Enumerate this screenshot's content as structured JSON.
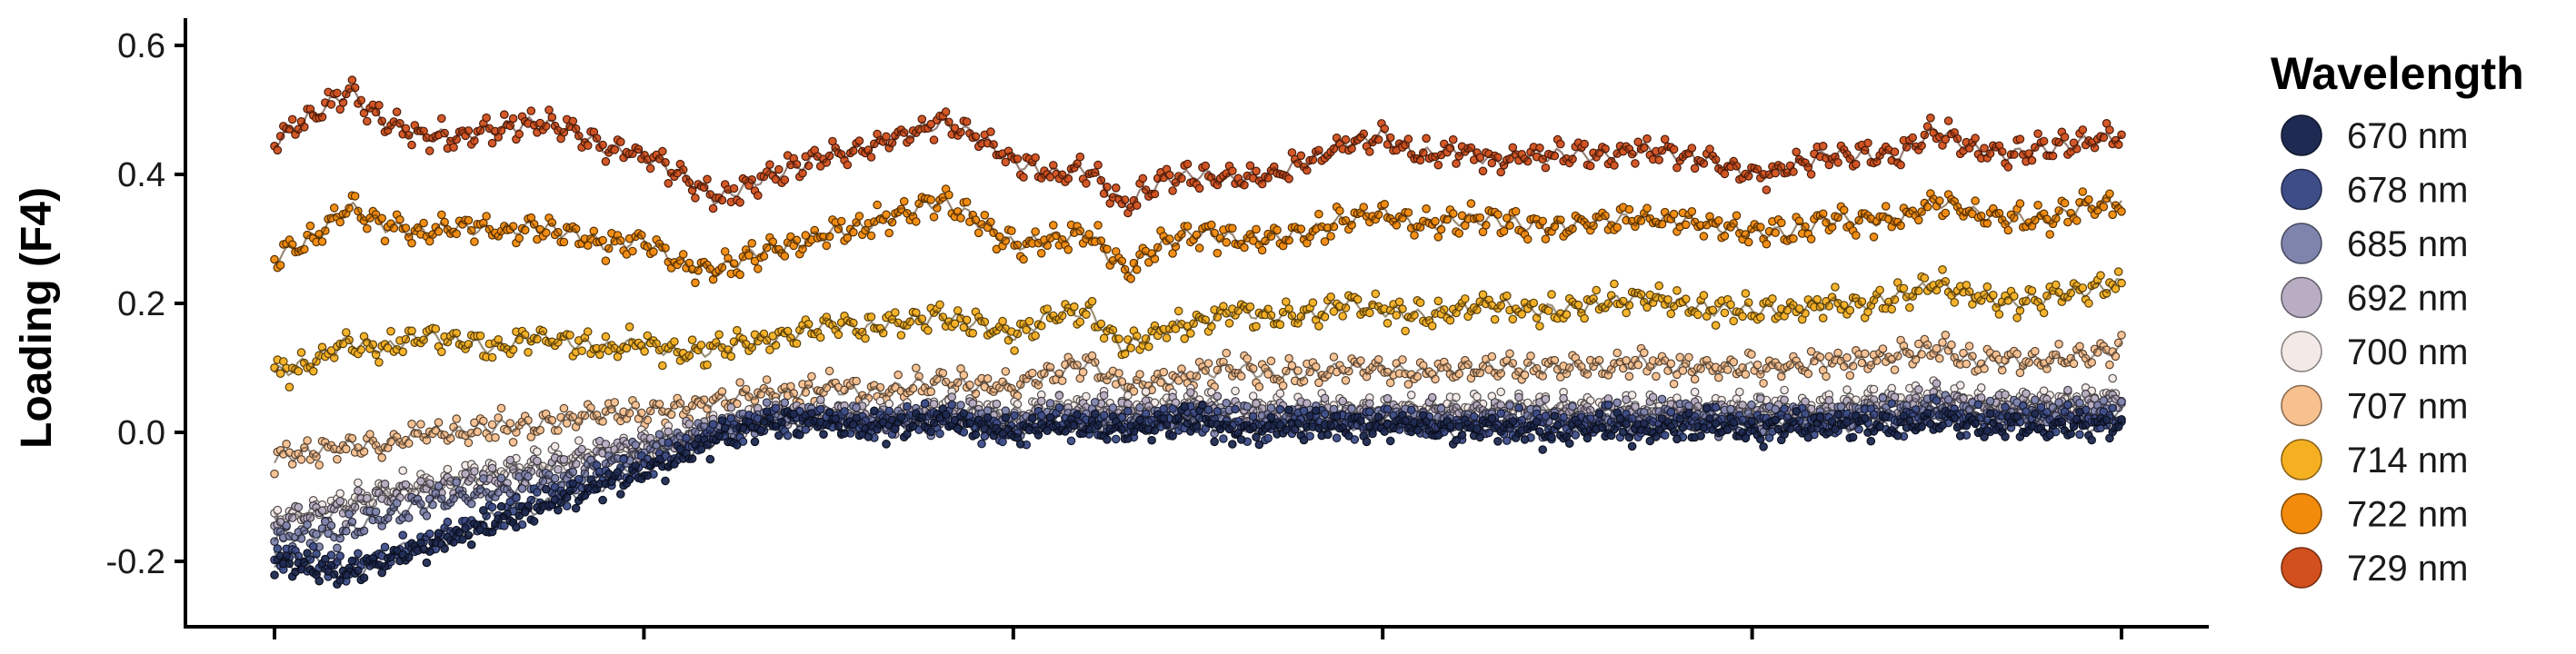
{
  "chart_data": {
    "type": "scatter",
    "title": "",
    "xlabel": "",
    "ylabel": "Loading (F4)",
    "ylim": [
      -0.3,
      0.63
    ],
    "xlim": [
      0,
      100
    ],
    "y_ticks": [
      -0.2,
      0.0,
      0.2,
      0.4,
      0.6
    ],
    "y_tick_labels": [
      "-0.2",
      "0.0",
      "0.2",
      "0.4",
      "0.6"
    ],
    "x_ticks": [
      0,
      20,
      40,
      60,
      80,
      100
    ],
    "x_tick_labels": [],
    "grid": false,
    "legend": {
      "title": "Wavelength",
      "position": "right"
    },
    "x": [
      0,
      2,
      4,
      6,
      8,
      10,
      12,
      14,
      16,
      18,
      20,
      22,
      24,
      26,
      28,
      30,
      32,
      34,
      36,
      38,
      40,
      42,
      44,
      46,
      48,
      50,
      52,
      54,
      56,
      58,
      60,
      62,
      64,
      66,
      68,
      70,
      72,
      74,
      76,
      78,
      80,
      82,
      84,
      86,
      88,
      90,
      92,
      94,
      96,
      98,
      100
    ],
    "series": [
      {
        "name": "670 nm",
        "color": "#1f2a52",
        "values": [
          -0.2,
          -0.21,
          -0.22,
          -0.2,
          -0.18,
          -0.16,
          -0.14,
          -0.12,
          -0.1,
          -0.08,
          -0.06,
          -0.04,
          -0.01,
          0.01,
          0.02,
          0.01,
          0.01,
          0.01,
          0.02,
          0.01,
          0.0,
          0.01,
          0.01,
          0.0,
          0.01,
          0.02,
          0.0,
          0.01,
          0.01,
          0.01,
          0.01,
          0.01,
          0.0,
          0.01,
          0.0,
          0.0,
          0.01,
          0.0,
          0.01,
          0.01,
          0.0,
          0.01,
          0.01,
          0.01,
          0.01,
          0.02,
          0.01,
          0.01,
          0.01,
          0.01,
          0.01
        ]
      },
      {
        "name": "678 nm",
        "color": "#3e4d88",
        "values": [
          -0.19,
          -0.2,
          -0.21,
          -0.19,
          -0.17,
          -0.15,
          -0.13,
          -0.11,
          -0.09,
          -0.07,
          -0.05,
          -0.03,
          0.0,
          0.01,
          0.02,
          0.02,
          0.01,
          0.02,
          0.02,
          0.01,
          0.0,
          0.02,
          0.01,
          0.01,
          0.02,
          0.02,
          0.01,
          0.01,
          0.02,
          0.01,
          0.02,
          0.01,
          0.01,
          0.01,
          0.01,
          0.01,
          0.02,
          0.01,
          0.01,
          0.02,
          0.01,
          0.02,
          0.01,
          0.02,
          0.02,
          0.03,
          0.02,
          0.02,
          0.02,
          0.02,
          0.02
        ]
      },
      {
        "name": "685 nm",
        "color": "#7f84ad",
        "values": [
          -0.16,
          -0.16,
          -0.15,
          -0.13,
          -0.11,
          -0.1,
          -0.09,
          -0.08,
          -0.07,
          -0.05,
          -0.03,
          -0.01,
          0.01,
          0.02,
          0.02,
          0.02,
          0.02,
          0.02,
          0.02,
          0.02,
          0.01,
          0.02,
          0.02,
          0.02,
          0.02,
          0.03,
          0.02,
          0.02,
          0.02,
          0.02,
          0.02,
          0.02,
          0.02,
          0.02,
          0.02,
          0.02,
          0.02,
          0.02,
          0.03,
          0.02,
          0.02,
          0.02,
          0.02,
          0.03,
          0.03,
          0.04,
          0.03,
          0.03,
          0.03,
          0.03,
          0.03
        ]
      },
      {
        "name": "692 nm",
        "color": "#b8adc2",
        "values": [
          -0.14,
          -0.13,
          -0.12,
          -0.1,
          -0.09,
          -0.08,
          -0.07,
          -0.06,
          -0.05,
          -0.03,
          -0.02,
          -0.01,
          0.01,
          0.02,
          0.03,
          0.03,
          0.02,
          0.02,
          0.03,
          0.03,
          0.02,
          0.03,
          0.03,
          0.03,
          0.03,
          0.04,
          0.03,
          0.03,
          0.03,
          0.03,
          0.03,
          0.03,
          0.03,
          0.03,
          0.03,
          0.03,
          0.03,
          0.03,
          0.03,
          0.03,
          0.03,
          0.03,
          0.03,
          0.04,
          0.04,
          0.05,
          0.04,
          0.04,
          0.04,
          0.04,
          0.05
        ]
      },
      {
        "name": "700 nm",
        "color": "#f3e9e6",
        "values": [
          -0.13,
          -0.12,
          -0.11,
          -0.09,
          -0.08,
          -0.07,
          -0.06,
          -0.05,
          -0.04,
          -0.03,
          -0.02,
          -0.01,
          0.01,
          0.02,
          0.03,
          0.03,
          0.03,
          0.03,
          0.04,
          0.03,
          0.03,
          0.04,
          0.04,
          0.04,
          0.04,
          0.05,
          0.04,
          0.04,
          0.04,
          0.04,
          0.04,
          0.04,
          0.04,
          0.04,
          0.04,
          0.04,
          0.04,
          0.04,
          0.04,
          0.04,
          0.04,
          0.04,
          0.04,
          0.05,
          0.05,
          0.06,
          0.05,
          0.05,
          0.05,
          0.05,
          0.06
        ]
      },
      {
        "name": "707 nm",
        "color": "#f7c08f",
        "values": [
          -0.04,
          -0.03,
          -0.02,
          -0.02,
          0.0,
          0.0,
          0.01,
          0.01,
          0.02,
          0.03,
          0.03,
          0.04,
          0.05,
          0.06,
          0.06,
          0.07,
          0.06,
          0.07,
          0.08,
          0.07,
          0.07,
          0.09,
          0.11,
          0.07,
          0.08,
          0.09,
          0.1,
          0.09,
          0.09,
          0.1,
          0.1,
          0.09,
          0.1,
          0.1,
          0.1,
          0.1,
          0.1,
          0.11,
          0.1,
          0.1,
          0.1,
          0.1,
          0.11,
          0.11,
          0.12,
          0.13,
          0.11,
          0.11,
          0.11,
          0.12,
          0.13
        ]
      },
      {
        "name": "714 nm",
        "color": "#f5b022",
        "values": [
          0.09,
          0.11,
          0.14,
          0.13,
          0.15,
          0.14,
          0.13,
          0.15,
          0.14,
          0.13,
          0.14,
          0.12,
          0.13,
          0.14,
          0.15,
          0.17,
          0.16,
          0.17,
          0.18,
          0.17,
          0.15,
          0.18,
          0.19,
          0.13,
          0.16,
          0.17,
          0.19,
          0.18,
          0.18,
          0.2,
          0.19,
          0.18,
          0.19,
          0.2,
          0.19,
          0.19,
          0.2,
          0.21,
          0.2,
          0.19,
          0.19,
          0.19,
          0.2,
          0.2,
          0.21,
          0.23,
          0.21,
          0.2,
          0.21,
          0.22,
          0.23
        ]
      },
      {
        "name": "722 nm",
        "color": "#f28a0c",
        "values": [
          0.27,
          0.3,
          0.35,
          0.32,
          0.31,
          0.32,
          0.31,
          0.32,
          0.31,
          0.29,
          0.3,
          0.26,
          0.25,
          0.28,
          0.29,
          0.31,
          0.32,
          0.34,
          0.36,
          0.33,
          0.29,
          0.3,
          0.31,
          0.25,
          0.29,
          0.31,
          0.3,
          0.3,
          0.31,
          0.33,
          0.34,
          0.32,
          0.33,
          0.33,
          0.32,
          0.32,
          0.33,
          0.33,
          0.33,
          0.32,
          0.31,
          0.31,
          0.33,
          0.33,
          0.33,
          0.36,
          0.34,
          0.33,
          0.33,
          0.35,
          0.36
        ]
      },
      {
        "name": "729 nm",
        "color": "#d2501e",
        "values": [
          0.45,
          0.49,
          0.53,
          0.48,
          0.46,
          0.46,
          0.47,
          0.48,
          0.47,
          0.44,
          0.43,
          0.4,
          0.36,
          0.39,
          0.41,
          0.43,
          0.44,
          0.46,
          0.48,
          0.46,
          0.42,
          0.4,
          0.41,
          0.35,
          0.39,
          0.4,
          0.39,
          0.4,
          0.42,
          0.45,
          0.46,
          0.43,
          0.44,
          0.42,
          0.43,
          0.43,
          0.43,
          0.44,
          0.43,
          0.42,
          0.4,
          0.41,
          0.43,
          0.43,
          0.43,
          0.47,
          0.44,
          0.43,
          0.44,
          0.45,
          0.46
        ]
      }
    ]
  }
}
